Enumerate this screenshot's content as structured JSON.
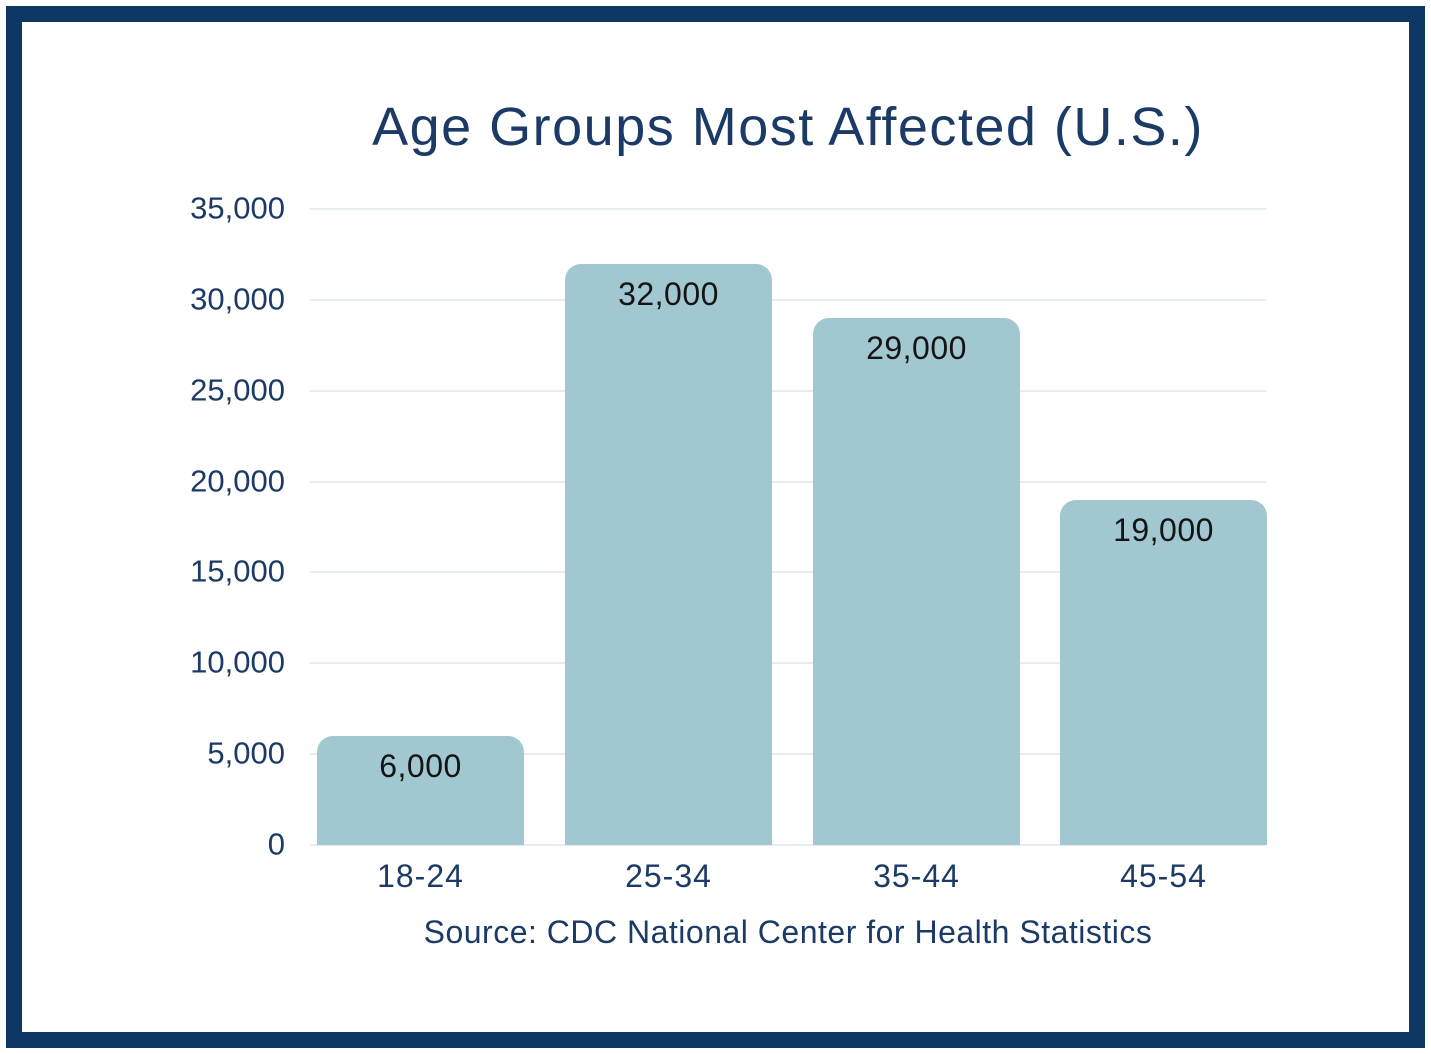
{
  "chart_data": {
    "type": "bar",
    "title": "Age Groups Most Affected (U.S.)",
    "categories": [
      "18-24",
      "25-34",
      "35-44",
      "45-54"
    ],
    "values": [
      6000,
      32000,
      29000,
      19000
    ],
    "bar_labels": [
      "6,000",
      "32,000",
      "29,000",
      "19,000"
    ],
    "ylim": [
      0,
      35000
    ],
    "ytick_step": 5000,
    "ytick_labels": [
      "35,000",
      "30,000",
      "25,000",
      "20,000",
      "15,000",
      "10,000",
      "5,000",
      "0"
    ],
    "xlabel": "",
    "ylabel": "",
    "grid": "horizontal-only",
    "legend": "none",
    "source": "Source: CDC National Center for Health Statistics",
    "colors": {
      "bar_fill": "#a1c8d1",
      "title_text": "#1b3a66",
      "axis_text": "#1b3a66",
      "bar_label_text": "#141414",
      "gridline": "#e7ecef",
      "frame_border": "#0d3866",
      "background": "#ffffff"
    }
  }
}
